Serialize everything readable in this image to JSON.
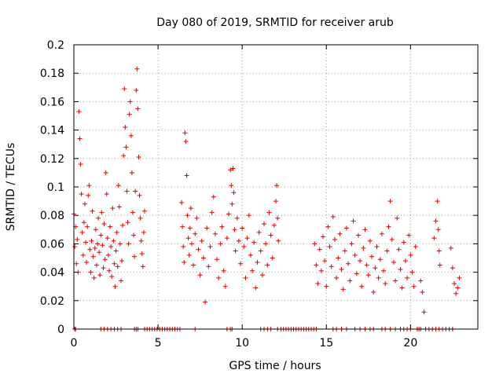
{
  "chart_data": {
    "type": "scatter",
    "title": "Day 080 of 2019, SRMTID for receiver arub",
    "xlabel": "GPS time / hours",
    "ylabel": "SRMTID / TECUs",
    "xlim": [
      0,
      24
    ],
    "ylim": [
      0,
      0.2
    ],
    "x_ticks": [
      0,
      5,
      10,
      15,
      20
    ],
    "x_tick_labels": [
      "0",
      "5",
      "10",
      "15",
      "20"
    ],
    "y_ticks": [
      0,
      0.02,
      0.04,
      0.06,
      0.08,
      0.1,
      0.12,
      0.14,
      0.16,
      0.18,
      0.2
    ],
    "y_tick_labels": [
      "0",
      "0.02",
      "0.04",
      "0.06",
      "0.08",
      "0.1",
      "0.12",
      "0.14",
      "0.16",
      "0.18",
      "0.2"
    ],
    "grid": true,
    "marker": "plus",
    "color": "#e00000",
    "series": [
      {
        "name": "SRMTID",
        "points": [
          [
            0.0,
            0.081
          ],
          [
            0.05,
            0.058
          ],
          [
            0.1,
            0.072
          ],
          [
            0.15,
            0.046
          ],
          [
            0.2,
            0.063
          ],
          [
            0.25,
            0.04
          ],
          [
            0.3,
            0.153
          ],
          [
            0.35,
            0.134
          ],
          [
            0.4,
            0.116
          ],
          [
            0.45,
            0.095
          ],
          [
            0.5,
            0.068
          ],
          [
            0.55,
            0.052
          ],
          [
            0.6,
            0.075
          ],
          [
            0.65,
            0.088
          ],
          [
            0.7,
            0.061
          ],
          [
            0.75,
            0.047
          ],
          [
            0.8,
            0.072
          ],
          [
            0.85,
            0.094
          ],
          [
            0.9,
            0.101
          ],
          [
            0.95,
            0.056
          ],
          [
            1.0,
            0.04
          ],
          [
            1.05,
            0.062
          ],
          [
            1.1,
            0.083
          ],
          [
            1.15,
            0.051
          ],
          [
            1.2,
            0.036
          ],
          [
            1.25,
            0.057
          ],
          [
            1.3,
            0.07
          ],
          [
            1.35,
            0.045
          ],
          [
            1.4,
            0.06
          ],
          [
            1.45,
            0.078
          ],
          [
            1.5,
            0.054
          ],
          [
            1.55,
            0.038
          ],
          [
            1.6,
            0.066
          ],
          [
            1.65,
            0.082
          ],
          [
            1.7,
            0.059
          ],
          [
            1.75,
            0.043
          ],
          [
            1.8,
            0.074
          ],
          [
            1.85,
            0.049
          ],
          [
            1.9,
            0.11
          ],
          [
            1.95,
            0.095
          ],
          [
            2.0,
            0.064
          ],
          [
            2.05,
            0.052
          ],
          [
            2.1,
            0.041
          ],
          [
            2.15,
            0.072
          ],
          [
            2.2,
            0.058
          ],
          [
            2.25,
            0.037
          ],
          [
            2.3,
            0.085
          ],
          [
            2.35,
            0.062
          ],
          [
            2.4,
            0.046
          ],
          [
            2.45,
            0.03
          ],
          [
            2.5,
            0.055
          ],
          [
            2.55,
            0.068
          ],
          [
            2.6,
            0.044
          ],
          [
            2.65,
            0.101
          ],
          [
            2.7,
            0.086
          ],
          [
            2.75,
            0.06
          ],
          [
            2.8,
            0.034
          ],
          [
            2.85,
            0.048
          ],
          [
            2.9,
            0.073
          ],
          [
            2.95,
            0.122
          ],
          [
            3.0,
            0.169
          ],
          [
            3.05,
            0.142
          ],
          [
            3.1,
            0.128
          ],
          [
            3.15,
            0.097
          ],
          [
            3.2,
            0.075
          ],
          [
            3.25,
            0.06
          ],
          [
            3.3,
            0.151
          ],
          [
            3.35,
            0.16
          ],
          [
            3.4,
            0.136
          ],
          [
            3.45,
            0.11
          ],
          [
            3.5,
            0.082
          ],
          [
            3.55,
            0.066
          ],
          [
            3.6,
            0.051
          ],
          [
            3.65,
            0.097
          ],
          [
            3.7,
            0.168
          ],
          [
            3.75,
            0.183
          ],
          [
            3.8,
            0.155
          ],
          [
            3.85,
            0.121
          ],
          [
            3.9,
            0.094
          ],
          [
            3.95,
            0.078
          ],
          [
            4.0,
            0.062
          ],
          [
            4.05,
            0.053
          ],
          [
            4.1,
            0.044
          ],
          [
            4.15,
            0.068
          ],
          [
            4.2,
            0.083
          ],
          [
            6.4,
            0.089
          ],
          [
            6.45,
            0.072
          ],
          [
            6.5,
            0.058
          ],
          [
            6.55,
            0.047
          ],
          [
            6.6,
            0.138
          ],
          [
            6.65,
            0.132
          ],
          [
            6.7,
            0.108
          ],
          [
            6.75,
            0.08
          ],
          [
            6.8,
            0.064
          ],
          [
            6.85,
            0.052
          ],
          [
            6.9,
            0.071
          ],
          [
            6.95,
            0.085
          ],
          [
            7.0,
            0.06
          ],
          [
            7.1,
            0.045
          ],
          [
            7.2,
            0.067
          ],
          [
            7.3,
            0.078
          ],
          [
            7.4,
            0.056
          ],
          [
            7.5,
            0.038
          ],
          [
            7.6,
            0.062
          ],
          [
            7.7,
            0.05
          ],
          [
            7.8,
            0.019
          ],
          [
            7.9,
            0.071
          ],
          [
            8.0,
            0.044
          ],
          [
            8.1,
            0.058
          ],
          [
            8.2,
            0.082
          ],
          [
            8.3,
            0.093
          ],
          [
            8.4,
            0.067
          ],
          [
            8.5,
            0.049
          ],
          [
            8.6,
            0.036
          ],
          [
            8.7,
            0.06
          ],
          [
            8.8,
            0.072
          ],
          [
            8.9,
            0.041
          ],
          [
            9.0,
            0.03
          ],
          [
            9.1,
            0.064
          ],
          [
            9.2,
            0.081
          ],
          [
            9.3,
            0.112
          ],
          [
            9.35,
            0.101
          ],
          [
            9.4,
            0.088
          ],
          [
            9.45,
            0.113
          ],
          [
            9.5,
            0.096
          ],
          [
            9.55,
            0.07
          ],
          [
            9.6,
            0.055
          ],
          [
            9.7,
            0.078
          ],
          [
            9.8,
            0.062
          ],
          [
            9.9,
            0.046
          ],
          [
            10.0,
            0.071
          ],
          [
            10.1,
            0.058
          ],
          [
            10.2,
            0.036
          ],
          [
            10.3,
            0.064
          ],
          [
            10.4,
            0.08
          ],
          [
            10.5,
            0.052
          ],
          [
            10.6,
            0.041
          ],
          [
            10.7,
            0.061
          ],
          [
            10.8,
            0.029
          ],
          [
            10.9,
            0.047
          ],
          [
            11.0,
            0.068
          ],
          [
            11.1,
            0.055
          ],
          [
            11.2,
            0.038
          ],
          [
            11.3,
            0.074
          ],
          [
            11.4,
            0.06
          ],
          [
            11.5,
            0.045
          ],
          [
            11.6,
            0.082
          ],
          [
            11.7,
            0.066
          ],
          [
            11.8,
            0.05
          ],
          [
            11.9,
            0.073
          ],
          [
            12.0,
            0.09
          ],
          [
            12.05,
            0.101
          ],
          [
            12.1,
            0.078
          ],
          [
            12.15,
            0.062
          ],
          [
            14.3,
            0.06
          ],
          [
            14.4,
            0.045
          ],
          [
            14.5,
            0.032
          ],
          [
            14.6,
            0.056
          ],
          [
            14.7,
            0.041
          ],
          [
            14.8,
            0.065
          ],
          [
            14.9,
            0.048
          ],
          [
            15.0,
            0.03
          ],
          [
            15.1,
            0.072
          ],
          [
            15.2,
            0.058
          ],
          [
            15.3,
            0.044
          ],
          [
            15.4,
            0.079
          ],
          [
            15.5,
            0.063
          ],
          [
            15.6,
            0.036
          ],
          [
            15.7,
            0.05
          ],
          [
            15.8,
            0.067
          ],
          [
            15.9,
            0.042
          ],
          [
            16.0,
            0.028
          ],
          [
            16.1,
            0.055
          ],
          [
            16.2,
            0.071
          ],
          [
            16.3,
            0.046
          ],
          [
            16.4,
            0.034
          ],
          [
            16.5,
            0.06
          ],
          [
            16.6,
            0.076
          ],
          [
            16.7,
            0.052
          ],
          [
            16.8,
            0.039
          ],
          [
            16.9,
            0.066
          ],
          [
            17.0,
            0.048
          ],
          [
            17.1,
            0.03
          ],
          [
            17.2,
            0.057
          ],
          [
            17.3,
            0.07
          ],
          [
            17.4,
            0.045
          ],
          [
            17.5,
            0.038
          ],
          [
            17.6,
            0.062
          ],
          [
            17.7,
            0.051
          ],
          [
            17.8,
            0.026
          ],
          [
            17.9,
            0.043
          ],
          [
            18.0,
            0.058
          ],
          [
            18.1,
            0.036
          ],
          [
            18.2,
            0.049
          ],
          [
            18.3,
            0.067
          ],
          [
            18.4,
            0.041
          ],
          [
            18.5,
            0.032
          ],
          [
            18.6,
            0.055
          ],
          [
            18.7,
            0.072
          ],
          [
            18.8,
            0.09
          ],
          [
            18.9,
            0.063
          ],
          [
            19.0,
            0.047
          ],
          [
            19.1,
            0.034
          ],
          [
            19.2,
            0.078
          ],
          [
            19.3,
            0.056
          ],
          [
            19.4,
            0.042
          ],
          [
            19.5,
            0.029
          ],
          [
            19.6,
            0.061
          ],
          [
            19.7,
            0.048
          ],
          [
            19.8,
            0.036
          ],
          [
            19.9,
            0.066
          ],
          [
            20.0,
            0.052
          ],
          [
            20.1,
            0.04
          ],
          [
            20.2,
            0.03
          ],
          [
            20.3,
            0.058
          ],
          [
            20.6,
            0.034
          ],
          [
            20.7,
            0.026
          ],
          [
            20.8,
            0.012
          ],
          [
            21.4,
            0.064
          ],
          [
            21.5,
            0.076
          ],
          [
            21.6,
            0.09
          ],
          [
            21.65,
            0.07
          ],
          [
            21.7,
            0.055
          ],
          [
            21.75,
            0.045
          ],
          [
            22.4,
            0.057
          ],
          [
            22.5,
            0.043
          ],
          [
            22.6,
            0.032
          ],
          [
            22.7,
            0.025
          ],
          [
            22.8,
            0.029
          ],
          [
            22.9,
            0.036
          ]
        ],
        "zero_points": [
          0.05,
          0.1,
          1.6,
          1.8,
          2.0,
          2.2,
          2.4,
          2.6,
          2.8,
          3.6,
          3.7,
          3.8,
          4.2,
          4.35,
          4.5,
          4.65,
          4.8,
          4.95,
          5.1,
          5.25,
          5.4,
          5.55,
          5.7,
          5.85,
          6.0,
          6.15,
          6.3,
          7.2,
          9.1,
          9.3,
          9.4,
          11.1,
          11.3,
          11.5,
          11.7,
          12.1,
          12.3,
          12.45,
          12.6,
          12.75,
          12.9,
          13.05,
          13.2,
          13.35,
          13.5,
          13.65,
          13.8,
          13.95,
          14.1,
          14.25,
          14.4,
          15.4,
          15.6,
          15.9,
          16.2,
          16.7,
          17.0,
          17.3,
          17.6,
          17.8,
          18.3,
          18.5,
          18.8,
          19.1,
          19.4,
          19.6,
          19.8,
          20.0,
          20.4,
          20.5,
          20.6,
          20.9,
          21.1,
          21.3,
          21.5,
          21.7,
          21.9,
          22.1,
          22.3,
          22.5
        ]
      }
    ]
  }
}
